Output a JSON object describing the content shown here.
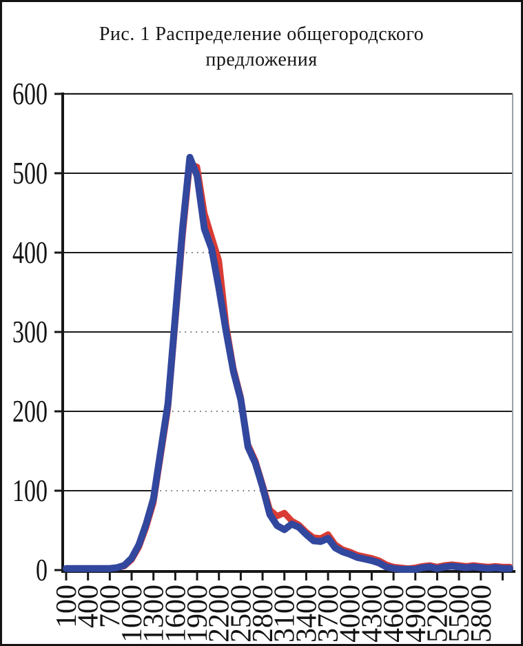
{
  "title": {
    "line1": "Рис. 1 Распределение общегородского",
    "line2": "предложения"
  },
  "chart_data": {
    "type": "line",
    "title": "Рис. 1 Распределение общегородского предложения",
    "xlabel": "",
    "ylabel": "",
    "xlim": [
      100,
      6200
    ],
    "ylim": [
      0,
      600
    ],
    "grid": "horizontal, solid black; dotted gray inside the peak region",
    "legend": "none",
    "x": [
      100,
      200,
      300,
      400,
      500,
      600,
      700,
      800,
      900,
      1000,
      1100,
      1200,
      1300,
      1400,
      1500,
      1600,
      1700,
      1800,
      1900,
      2000,
      2100,
      2200,
      2300,
      2400,
      2500,
      2600,
      2700,
      2800,
      2900,
      3000,
      3100,
      3200,
      3300,
      3400,
      3500,
      3600,
      3700,
      3800,
      3900,
      4000,
      4100,
      4200,
      4300,
      4400,
      4500,
      4600,
      4700,
      4800,
      4900,
      5000,
      5100,
      5200,
      5300,
      5400,
      5500,
      5600,
      5700,
      5800,
      5900,
      6000,
      6100,
      6200
    ],
    "series": [
      {
        "name": "red-series",
        "color": "#d83c34",
        "stroke_width": 9,
        "values": [
          2,
          2,
          2,
          2,
          2,
          2,
          2,
          3,
          5,
          13,
          29,
          54,
          85,
          144,
          204,
          312,
          420,
          512,
          508,
          450,
          420,
          390,
          308,
          254,
          218,
          158,
          138,
          108,
          76,
          68,
          72,
          62,
          57,
          48,
          41,
          40,
          45,
          32,
          26,
          23,
          19,
          17,
          15,
          12,
          7,
          4,
          3,
          2,
          3,
          5,
          6,
          4,
          6,
          7,
          6,
          5,
          6,
          5,
          4,
          5,
          4,
          4
        ]
      },
      {
        "name": "blue-series",
        "color": "#32479e",
        "stroke_width": 10,
        "values": [
          2,
          2,
          2,
          2,
          2,
          2,
          2,
          3,
          6,
          15,
          32,
          58,
          90,
          150,
          210,
          320,
          430,
          520,
          497,
          430,
          405,
          355,
          300,
          250,
          215,
          155,
          135,
          105,
          70,
          56,
          51,
          58,
          54,
          45,
          37,
          36,
          40,
          28,
          23,
          20,
          16,
          14,
          12,
          9,
          4,
          2,
          1,
          1,
          1,
          3,
          4,
          2,
          4,
          5,
          4,
          3,
          4,
          3,
          2,
          3,
          2,
          2
        ]
      }
    ],
    "yticks": [
      0,
      100,
      200,
      300,
      400,
      500,
      600
    ],
    "x_labeled_ticks": [
      100,
      400,
      700,
      1000,
      1300,
      1600,
      1900,
      2200,
      2500,
      2800,
      3100,
      3400,
      3700,
      4000,
      4300,
      4600,
      4900,
      5200,
      5500,
      5800
    ],
    "extra_unlabeled_ticks": [
      6100
    ],
    "axis_color": "#161616",
    "grid_color": "#1a1a1a",
    "dotted_grid_color": "#707070",
    "plot_right_border_color": "#9aa0a8"
  }
}
